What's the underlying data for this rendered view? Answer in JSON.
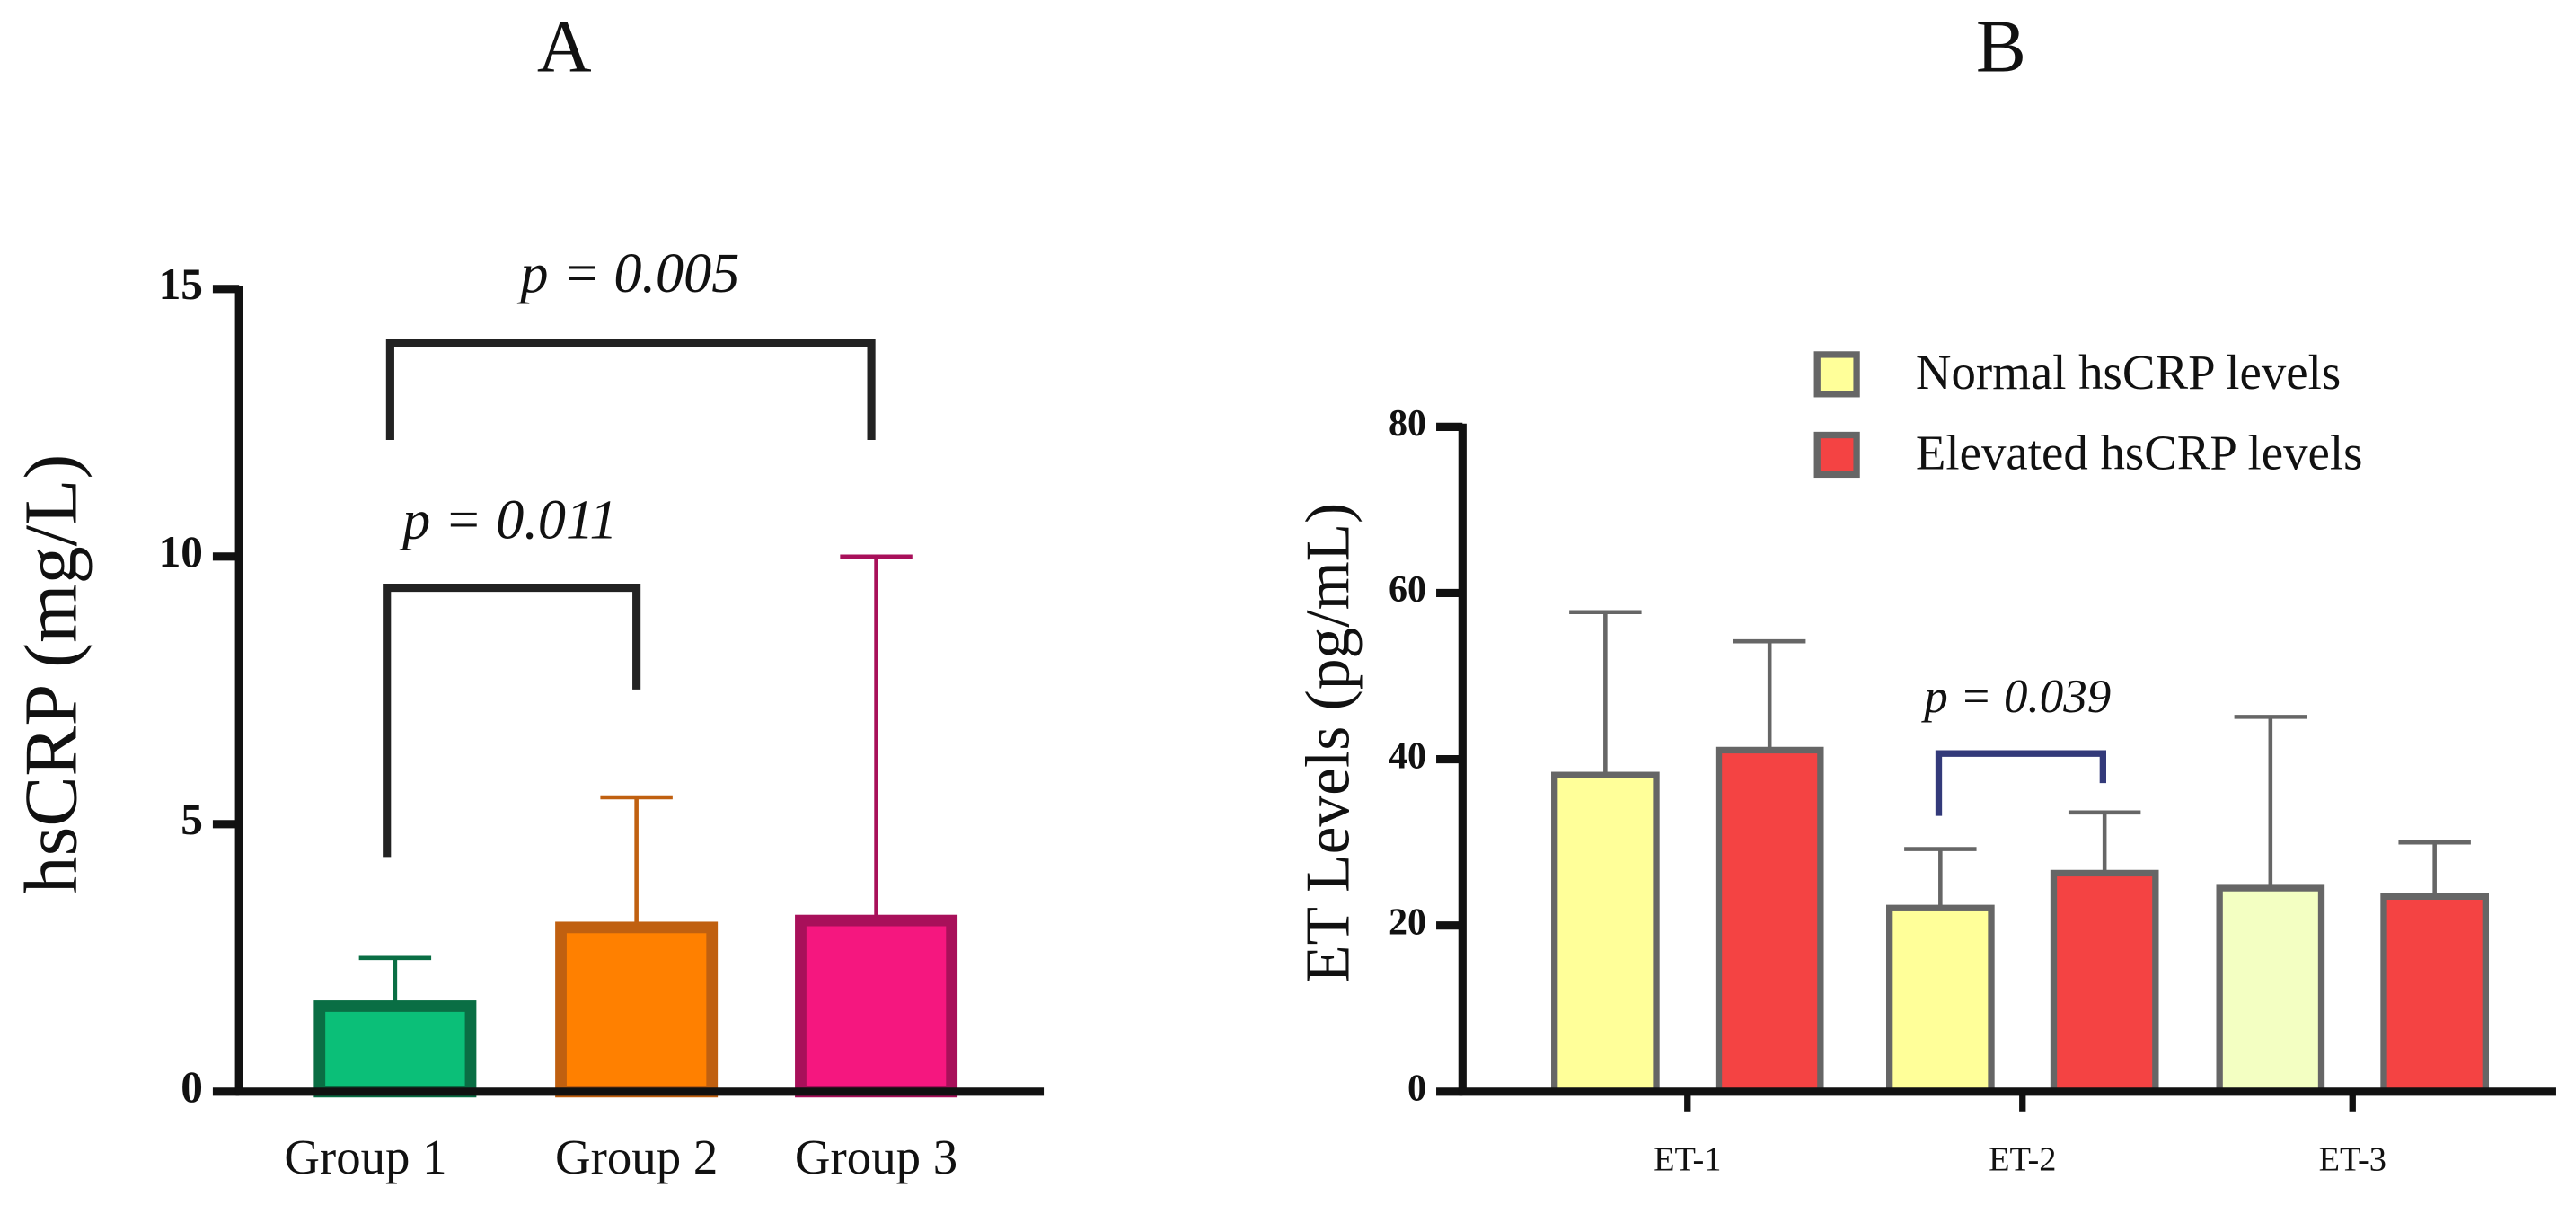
{
  "chart_data": [
    {
      "type": "bar",
      "title": "A",
      "y_label": "hsCRP (mg/L)",
      "categories": [
        "Group 1",
        "Group 2",
        "Group 3"
      ],
      "values": [
        1.6,
        3.07,
        3.2
      ],
      "errors": [
        0.9,
        2.43,
        6.8
      ],
      "colors": [
        "#0bbf78",
        "#ff8000",
        "#f5177f"
      ],
      "edge_colors": [
        "#0a6e44",
        "#c06010",
        "#a8105a"
      ],
      "ylim": [
        0,
        15
      ],
      "yticks": [
        0,
        5,
        10,
        15
      ],
      "annotations": [
        "p = 0.005",
        "p = 0.011"
      ]
    },
    {
      "type": "grouped_bar",
      "title": "B",
      "y_label": "ET Levels (pg/mL)",
      "categories": [
        "ET-1",
        "ET-2",
        "ET-3"
      ],
      "series": [
        {
          "name": "Normal hsCRP levels",
          "color": "#ffff99",
          "colors": [
            "#ffff99",
            "#ffff99",
            "#f3ffc2"
          ],
          "values": [
            38.1,
            22.1,
            24.5
          ],
          "errors": [
            19.6,
            7.1,
            20.6
          ]
        },
        {
          "name": "Elevated hsCRP levels",
          "color": "#f44343",
          "colors": [
            "#f44343",
            "#f44343",
            "#f44343"
          ],
          "values": [
            41.1,
            26.3,
            23.5
          ],
          "errors": [
            13.1,
            7.3,
            6.5
          ]
        }
      ],
      "ylim": [
        0,
        80
      ],
      "yticks": [
        0,
        20,
        40,
        60,
        80
      ],
      "legend": "upper right",
      "annotations": [
        "p = 0.039"
      ]
    }
  ]
}
